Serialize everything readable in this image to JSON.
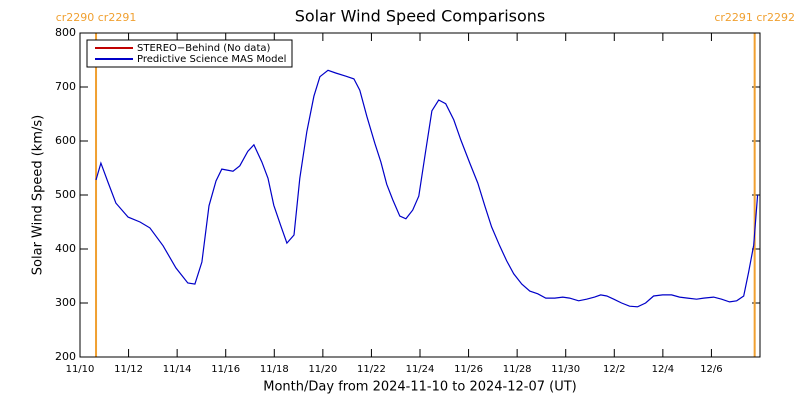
{
  "chart_data": {
    "type": "line",
    "title": "Solar Wind Speed Comparisons",
    "x_label": "Month/Day from 2024-11-10 to 2024-12-07 (UT)",
    "y_label": "Solar Wind Speed (km/s)",
    "xlim": [
      0,
      28
    ],
    "xticks": [
      {
        "value": 0,
        "label": "11/10"
      },
      {
        "value": 2,
        "label": "11/12"
      },
      {
        "value": 4,
        "label": "11/14"
      },
      {
        "value": 6,
        "label": "11/16"
      },
      {
        "value": 8,
        "label": "11/18"
      },
      {
        "value": 10,
        "label": "11/20"
      },
      {
        "value": 12,
        "label": "11/22"
      },
      {
        "value": 14,
        "label": "11/24"
      },
      {
        "value": 16,
        "label": "11/26"
      },
      {
        "value": 18,
        "label": "11/28"
      },
      {
        "value": 20,
        "label": "11/30"
      },
      {
        "value": 22,
        "label": "12/2"
      },
      {
        "value": 24,
        "label": "12/4"
      },
      {
        "value": 26,
        "label": "12/6"
      }
    ],
    "ylim": [
      200,
      800
    ],
    "yticks": [
      200,
      300,
      400,
      500,
      600,
      700,
      800
    ],
    "legend": "top-left",
    "carrington_markers": [
      {
        "x": 0.66,
        "label": "cr2290 cr2291",
        "color": "#f0a030"
      },
      {
        "x": 27.78,
        "label": "cr2291 cr2292",
        "color": "#f0a030"
      }
    ],
    "x": [
      0.66,
      0.86,
      1.15,
      1.48,
      1.98,
      2.47,
      2.88,
      3.42,
      3.95,
      4.44,
      4.73,
      5.02,
      5.31,
      5.6,
      5.84,
      6.3,
      6.58,
      6.91,
      7.16,
      7.49,
      7.74,
      7.98,
      8.27,
      8.52,
      8.81,
      9.05,
      9.34,
      9.63,
      9.88,
      10.21,
      10.53,
      10.95,
      11.28,
      11.52,
      11.81,
      12.14,
      12.39,
      12.63,
      12.88,
      13.17,
      13.42,
      13.7,
      13.95,
      14.24,
      14.49,
      14.77,
      15.06,
      15.39,
      15.68,
      16.05,
      16.38,
      16.67,
      16.95,
      17.28,
      17.57,
      17.86,
      18.19,
      18.52,
      18.85,
      19.18,
      19.55,
      19.88,
      20.16,
      20.53,
      20.86,
      21.19,
      21.44,
      21.69,
      21.98,
      22.3,
      22.63,
      22.96,
      23.29,
      23.62,
      23.99,
      24.36,
      24.69,
      25.02,
      25.39,
      25.68,
      26.09,
      26.42,
      26.75,
      27.04,
      27.33,
      27.53,
      27.74,
      27.9
    ],
    "series": [
      {
        "name": "STEREO−Behind (No data)",
        "color": "#c00000",
        "values": [
          null,
          null,
          null,
          null,
          null,
          null,
          null,
          null,
          null,
          null,
          null,
          null,
          null,
          null,
          null,
          null,
          null,
          null,
          null,
          null,
          null,
          null,
          null,
          null,
          null,
          null,
          null,
          null,
          null,
          null,
          null,
          null,
          null,
          null,
          null,
          null,
          null,
          null,
          null,
          null,
          null,
          null,
          null,
          null,
          null,
          null,
          null,
          null,
          null,
          null,
          null,
          null,
          null,
          null,
          null,
          null,
          null,
          null,
          null,
          null,
          null,
          null,
          null,
          null,
          null,
          null,
          null,
          null,
          null,
          null,
          null,
          null,
          null,
          null,
          null,
          null,
          null,
          null,
          null,
          null,
          null,
          null,
          null,
          null,
          null,
          null,
          null,
          null
        ]
      },
      {
        "name": "Predictive Science MAS Model",
        "color": "#0000c8",
        "values": [
          528,
          559,
          524,
          485,
          459,
          450,
          439,
          406,
          365,
          337,
          335,
          376,
          480,
          526,
          548,
          544,
          554,
          581,
          593,
          561,
          531,
          481,
          443,
          411,
          426,
          531,
          617,
          683,
          719,
          731,
          726,
          720,
          715,
          694,
          646,
          596,
          561,
          520,
          491,
          461,
          456,
          472,
          498,
          583,
          656,
          676,
          669,
          639,
          602,
          559,
          522,
          480,
          441,
          406,
          378,
          354,
          335,
          322,
          317,
          309,
          309,
          311,
          309,
          304,
          307,
          311,
          315,
          313,
          307,
          300,
          294,
          293,
          300,
          313,
          315,
          315,
          311,
          309,
          307,
          309,
          311,
          307,
          302,
          304,
          313,
          357,
          407,
          500
        ]
      }
    ]
  }
}
